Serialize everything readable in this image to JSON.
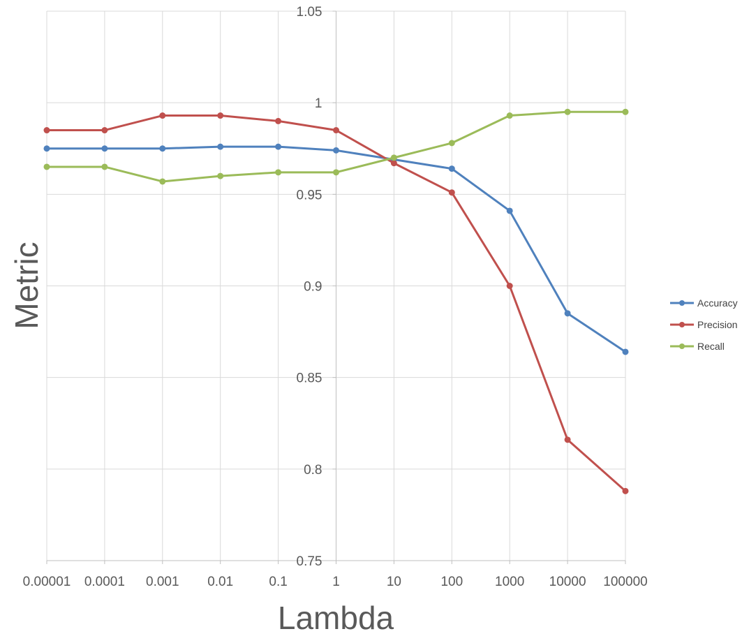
{
  "chart_data": {
    "type": "line",
    "title": "",
    "xlabel": "Lambda",
    "ylabel": "Metric",
    "categories": [
      "0.00001",
      "0.0001",
      "0.001",
      "0.01",
      "0.1",
      "1",
      "10",
      "100",
      "1000",
      "10000",
      "100000"
    ],
    "yticks": [
      "0.75",
      "0.8",
      "0.85",
      "0.9",
      "0.95",
      "1",
      "1.05"
    ],
    "ylim": [
      0.75,
      1.05
    ],
    "grid": true,
    "y_axis_crosses_at_category": "1",
    "legend_position": "right",
    "series": [
      {
        "name": "Accuracy",
        "color": "#4f81bd",
        "values": [
          0.975,
          0.975,
          0.975,
          0.976,
          0.976,
          0.974,
          0.969,
          0.964,
          0.941,
          0.885,
          0.864
        ]
      },
      {
        "name": "Precision",
        "color": "#c0504d",
        "values": [
          0.985,
          0.985,
          0.993,
          0.993,
          0.99,
          0.985,
          0.967,
          0.951,
          0.9,
          0.816,
          0.788
        ]
      },
      {
        "name": "Recall",
        "color": "#9bbb59",
        "values": [
          0.965,
          0.965,
          0.957,
          0.96,
          0.962,
          0.962,
          0.97,
          0.978,
          0.993,
          0.995,
          0.995
        ]
      }
    ]
  }
}
